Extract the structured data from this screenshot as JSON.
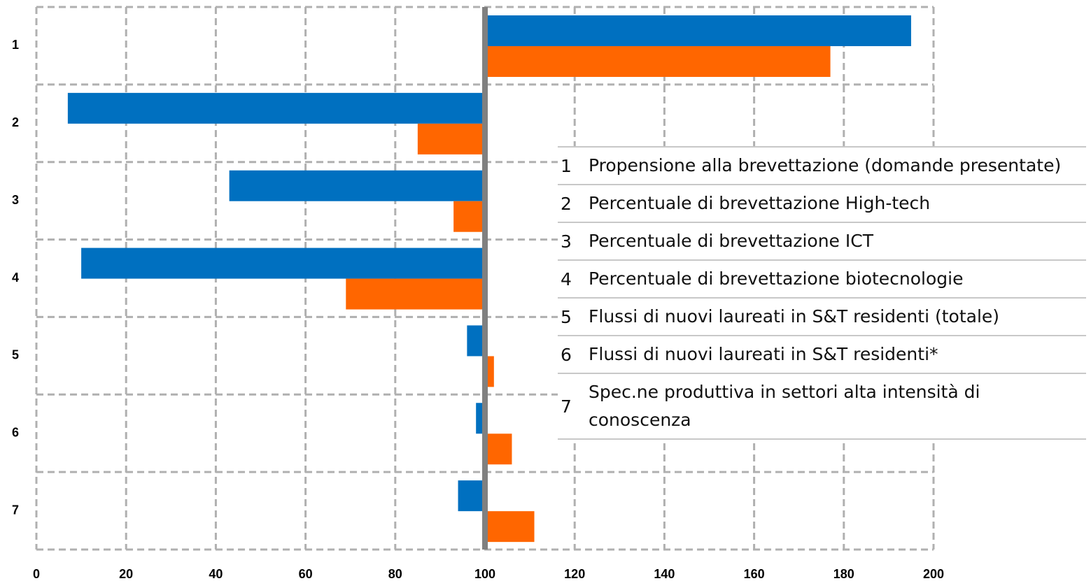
{
  "chart_data": {
    "type": "bar",
    "orientation": "horizontal",
    "categories": [
      "1",
      "2",
      "3",
      "4",
      "5",
      "6",
      "7"
    ],
    "base": 100,
    "series": [
      {
        "color": "#0070c0",
        "values": [
          195,
          7,
          43,
          10,
          96,
          98,
          94
        ]
      },
      {
        "color": "#ff6600",
        "values": [
          177,
          85,
          93,
          69,
          102,
          106,
          111
        ]
      }
    ],
    "xlim": [
      0,
      200
    ],
    "xticks": [
      0,
      20,
      40,
      60,
      80,
      100,
      120,
      140,
      160,
      180,
      200
    ],
    "grid": true,
    "legend_table": {
      "rows": [
        [
          "1",
          "Propensione alla brevettazione (domande presentate)"
        ],
        [
          "2",
          "Percentuale di brevettazione High-tech"
        ],
        [
          "3",
          "Percentuale di brevettazione ICT"
        ],
        [
          "4",
          "Percentuale di brevettazione biotecnologie"
        ],
        [
          "5",
          "Flussi di nuovi laureati in S&T residenti (totale)"
        ],
        [
          "6",
          "Flussi di nuovi laureati in S&T residenti*"
        ],
        [
          "7",
          "Spec.ne produttiva in settori alta intensità di conoscenza"
        ]
      ]
    }
  }
}
